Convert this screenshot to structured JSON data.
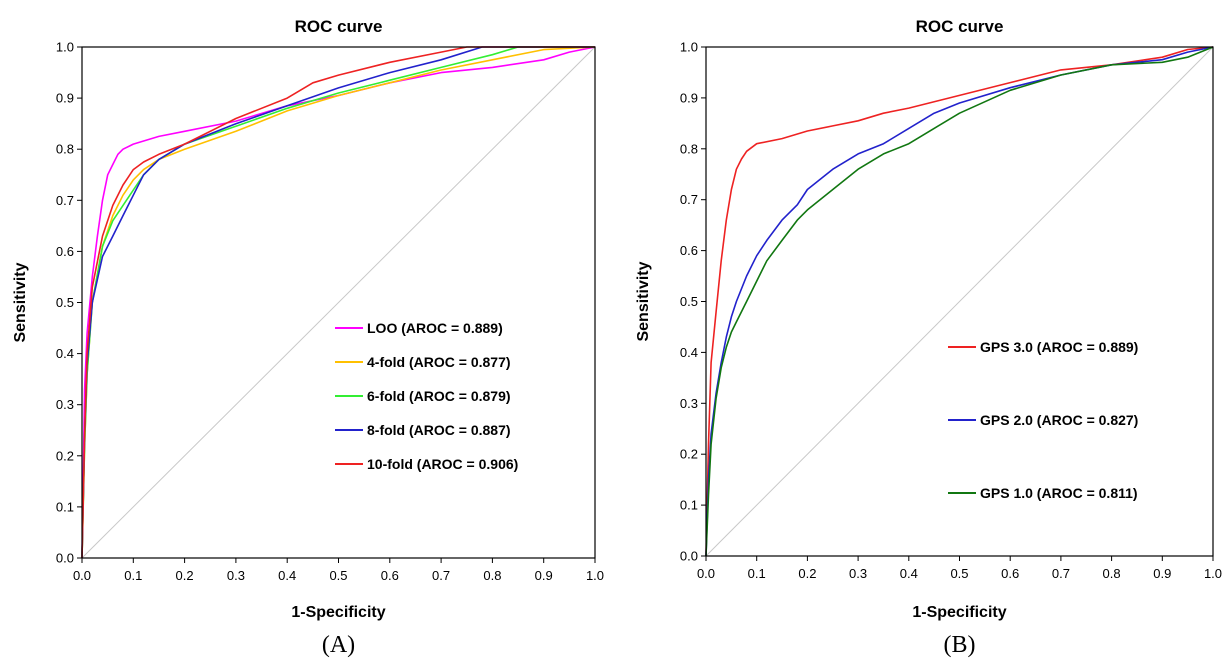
{
  "chart_data": [
    {
      "type": "line",
      "panel_label": "(A)",
      "title": "ROC curve",
      "xlabel": "1-Specificity",
      "ylabel": "Sensitivity",
      "xlim": [
        0,
        1
      ],
      "ylim": [
        0,
        1
      ],
      "xticks": [
        "0.0",
        "0.1",
        "0.2",
        "0.3",
        "0.4",
        "0.5",
        "0.6",
        "0.7",
        "0.8",
        "0.9",
        "1.0"
      ],
      "yticks": [
        "0.0",
        "0.1",
        "0.2",
        "0.3",
        "0.4",
        "0.5",
        "0.6",
        "0.7",
        "0.8",
        "0.9",
        "1.0"
      ],
      "grid": false,
      "diagonal": true,
      "legend_position": "bottom-right",
      "series": [
        {
          "name": "LOO (AROC = 0.889)",
          "color": "#ff00ff",
          "x": [
            0,
            0.005,
            0.01,
            0.02,
            0.03,
            0.04,
            0.05,
            0.06,
            0.07,
            0.08,
            0.1,
            0.15,
            0.2,
            0.3,
            0.4,
            0.5,
            0.6,
            0.7,
            0.8,
            0.9,
            0.95,
            1.0
          ],
          "y": [
            0,
            0.33,
            0.44,
            0.55,
            0.63,
            0.7,
            0.75,
            0.77,
            0.79,
            0.8,
            0.81,
            0.825,
            0.835,
            0.855,
            0.885,
            0.905,
            0.93,
            0.95,
            0.96,
            0.975,
            0.99,
            1.0
          ]
        },
        {
          "name": "4-fold (AROC = 0.877)",
          "color": "#ffc000",
          "x": [
            0,
            0.005,
            0.01,
            0.02,
            0.04,
            0.06,
            0.08,
            0.1,
            0.12,
            0.15,
            0.2,
            0.3,
            0.4,
            0.5,
            0.6,
            0.7,
            0.8,
            0.9,
            1.0
          ],
          "y": [
            0,
            0.22,
            0.36,
            0.5,
            0.61,
            0.67,
            0.71,
            0.74,
            0.76,
            0.78,
            0.8,
            0.835,
            0.875,
            0.905,
            0.93,
            0.955,
            0.975,
            0.995,
            1.0
          ]
        },
        {
          "name": "6-fold (AROC = 0.879)",
          "color": "#33ee33",
          "x": [
            0,
            0.005,
            0.01,
            0.02,
            0.04,
            0.06,
            0.08,
            0.1,
            0.12,
            0.15,
            0.2,
            0.3,
            0.4,
            0.5,
            0.6,
            0.7,
            0.8,
            0.85,
            1.0
          ],
          "y": [
            0,
            0.22,
            0.36,
            0.5,
            0.61,
            0.66,
            0.69,
            0.72,
            0.75,
            0.78,
            0.81,
            0.845,
            0.88,
            0.91,
            0.935,
            0.96,
            0.985,
            1.0,
            1.0
          ]
        },
        {
          "name": "8-fold (AROC = 0.887)",
          "color": "#2222cc",
          "x": [
            0,
            0.005,
            0.01,
            0.02,
            0.04,
            0.06,
            0.08,
            0.1,
            0.12,
            0.15,
            0.2,
            0.3,
            0.4,
            0.5,
            0.6,
            0.7,
            0.78,
            1.0
          ],
          "y": [
            0,
            0.24,
            0.38,
            0.5,
            0.59,
            0.63,
            0.67,
            0.71,
            0.75,
            0.78,
            0.81,
            0.85,
            0.885,
            0.92,
            0.95,
            0.975,
            1.0,
            1.0
          ]
        },
        {
          "name": "10-fold (AROC = 0.906)",
          "color": "#ee2222",
          "x": [
            0,
            0.005,
            0.01,
            0.02,
            0.04,
            0.06,
            0.08,
            0.1,
            0.12,
            0.15,
            0.2,
            0.3,
            0.4,
            0.45,
            0.5,
            0.6,
            0.7,
            0.75,
            1.0
          ],
          "y": [
            0,
            0.24,
            0.4,
            0.53,
            0.63,
            0.69,
            0.73,
            0.76,
            0.775,
            0.79,
            0.81,
            0.86,
            0.9,
            0.93,
            0.945,
            0.97,
            0.99,
            1.0,
            1.0
          ]
        }
      ]
    },
    {
      "type": "line",
      "panel_label": "(B)",
      "title": "ROC curve",
      "xlabel": "1-Specificity",
      "ylabel": "Sensitivity",
      "xlim": [
        0,
        1
      ],
      "ylim": [
        0,
        1
      ],
      "xticks": [
        "0.0",
        "0.1",
        "0.2",
        "0.3",
        "0.4",
        "0.5",
        "0.6",
        "0.7",
        "0.8",
        "0.9",
        "1.0"
      ],
      "yticks": [
        "0.0",
        "0.1",
        "0.2",
        "0.3",
        "0.4",
        "0.5",
        "0.6",
        "0.7",
        "0.8",
        "0.9",
        "1.0"
      ],
      "grid": false,
      "diagonal": true,
      "legend_position": "right",
      "series": [
        {
          "name": "GPS 3.0 (AROC = 0.889)",
          "color": "#ee2222",
          "x": [
            0,
            0.005,
            0.01,
            0.02,
            0.03,
            0.04,
            0.05,
            0.06,
            0.07,
            0.08,
            0.1,
            0.15,
            0.2,
            0.25,
            0.3,
            0.35,
            0.4,
            0.5,
            0.6,
            0.7,
            0.8,
            0.9,
            0.95,
            1.0
          ],
          "y": [
            0,
            0.22,
            0.38,
            0.48,
            0.58,
            0.66,
            0.72,
            0.76,
            0.78,
            0.795,
            0.81,
            0.82,
            0.835,
            0.845,
            0.855,
            0.87,
            0.88,
            0.905,
            0.93,
            0.955,
            0.965,
            0.98,
            0.995,
            1.0
          ]
        },
        {
          "name": "GPS 2.0 (AROC = 0.827)",
          "color": "#2222cc",
          "x": [
            0,
            0.005,
            0.01,
            0.02,
            0.03,
            0.04,
            0.05,
            0.06,
            0.08,
            0.1,
            0.12,
            0.15,
            0.18,
            0.2,
            0.25,
            0.3,
            0.35,
            0.4,
            0.45,
            0.5,
            0.6,
            0.7,
            0.8,
            0.9,
            0.95,
            1.0
          ],
          "y": [
            0,
            0.15,
            0.24,
            0.32,
            0.38,
            0.43,
            0.47,
            0.5,
            0.55,
            0.59,
            0.62,
            0.66,
            0.69,
            0.72,
            0.76,
            0.79,
            0.81,
            0.84,
            0.87,
            0.89,
            0.92,
            0.945,
            0.965,
            0.975,
            0.99,
            1.0
          ]
        },
        {
          "name": "GPS 1.0 (AROC = 0.811)",
          "color": "#117711",
          "x": [
            0,
            0.005,
            0.01,
            0.02,
            0.03,
            0.04,
            0.05,
            0.06,
            0.08,
            0.1,
            0.12,
            0.15,
            0.18,
            0.2,
            0.25,
            0.3,
            0.35,
            0.4,
            0.45,
            0.5,
            0.6,
            0.7,
            0.8,
            0.9,
            0.95,
            1.0
          ],
          "y": [
            0,
            0.12,
            0.22,
            0.31,
            0.37,
            0.41,
            0.44,
            0.46,
            0.5,
            0.54,
            0.58,
            0.62,
            0.66,
            0.68,
            0.72,
            0.76,
            0.79,
            0.81,
            0.84,
            0.87,
            0.915,
            0.945,
            0.965,
            0.97,
            0.98,
            1.0
          ]
        }
      ]
    }
  ]
}
